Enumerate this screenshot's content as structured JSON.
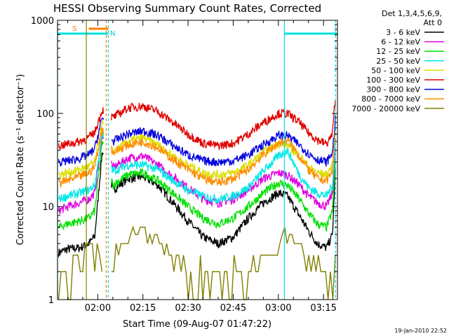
{
  "chart_data": {
    "type": "line",
    "title": "HESSI Observing Summary Count Rates, Corrected",
    "xlabel": "Start Time (09-Aug-07 01:47:22)",
    "ylabel": "Corrected Count Rate (s⁻¹ detector⁻¹)",
    "yscale": "log",
    "ylim": [
      1,
      1000
    ],
    "xlim_minutes": [
      -13.37,
      79.63
    ],
    "ytick_labels": [
      "1",
      "10",
      "100",
      "1000"
    ],
    "xticks": [
      {
        "label": "02:00",
        "minutes": 0
      },
      {
        "label": "02:15",
        "minutes": 15
      },
      {
        "label": "02:30",
        "minutes": 30
      },
      {
        "label": "02:45",
        "minutes": 45
      },
      {
        "label": "03:00",
        "minutes": 60
      },
      {
        "label": "03:15",
        "minutes": 75
      }
    ],
    "legend": {
      "header": [
        "Det 1,3,4,5,6,9,",
        "Att 0"
      ],
      "placement": "right"
    },
    "footer_date": "19-Jan-2010 22:52",
    "annotations": {
      "saa_label": "S",
      "night_label": "N",
      "night_bars_minutes": [
        [
          -13.37,
          3.5
        ],
        [
          62.0,
          79.63
        ]
      ],
      "saa_bar_minutes": [
        -3.0,
        3.5
      ],
      "night_boundaries_minutes": [
        -13.37,
        3.5,
        62.0,
        79.0
      ],
      "saa_boundary_minutes": 2.8,
      "data_gap_minutes": [
        2.0,
        4.5
      ]
    },
    "series": [
      {
        "name": "3 - 6 keV",
        "color": "#000000",
        "x": [
          -13,
          -10,
          -6,
          -3,
          -1,
          1.5,
          5,
          10,
          15,
          20,
          25,
          30,
          35,
          40,
          45,
          50,
          55,
          60,
          63,
          67,
          70,
          73,
          76,
          78,
          79
        ],
        "y": [
          3.2,
          3.5,
          3.6,
          4.0,
          4.8,
          40,
          15,
          20,
          21,
          17,
          11,
          7,
          4.7,
          4.0,
          4.7,
          7.5,
          11,
          14,
          13,
          8,
          5.5,
          4.0,
          3.6,
          5,
          28
        ]
      },
      {
        "name": "6 - 12 keV",
        "color": "#e000e0",
        "x": [
          -13,
          -10,
          -6,
          -3,
          -1,
          1.5,
          5,
          10,
          15,
          20,
          25,
          30,
          35,
          40,
          45,
          50,
          55,
          60,
          63,
          67,
          70,
          73,
          76,
          78,
          79
        ],
        "y": [
          9,
          10,
          11,
          12,
          14,
          60,
          26,
          33,
          35,
          28,
          21,
          16,
          12,
          11,
          12,
          15,
          20,
          23,
          22,
          17,
          13,
          11,
          10,
          14,
          45
        ]
      },
      {
        "name": "12 - 25 keV",
        "color": "#00e000",
        "x": [
          -13,
          -10,
          -6,
          -3,
          -1,
          1.5,
          5,
          10,
          15,
          20,
          25,
          30,
          35,
          40,
          45,
          50,
          55,
          60,
          63,
          67,
          70,
          73,
          76,
          78,
          79
        ],
        "y": [
          6,
          6.5,
          7,
          7.5,
          9,
          50,
          17,
          22,
          23,
          19,
          14,
          10,
          7.5,
          6.5,
          7.5,
          10,
          14,
          18,
          17,
          12,
          8.5,
          6.5,
          6,
          9,
          35
        ]
      },
      {
        "name": "25 - 50 keV",
        "color": "#00e8e8",
        "x": [
          -13,
          -10,
          -6,
          -3,
          -1,
          1.5,
          5,
          10,
          15,
          20,
          25,
          30,
          35,
          40,
          45,
          50,
          55,
          60,
          63,
          67,
          70,
          73,
          76,
          78,
          79
        ],
        "y": [
          12,
          13,
          14,
          15,
          17,
          60,
          24,
          28,
          28,
          25,
          19,
          15,
          13,
          12,
          13,
          16,
          24,
          35,
          40,
          22,
          16,
          14,
          13,
          17,
          60
        ]
      },
      {
        "name": "50 - 100 keV",
        "color": "#dddd00",
        "x": [
          -13,
          -10,
          -6,
          -3,
          -1,
          1.5,
          5,
          10,
          15,
          20,
          25,
          30,
          35,
          40,
          45,
          50,
          55,
          60,
          63,
          67,
          70,
          73,
          76,
          78,
          79
        ],
        "y": [
          22,
          23,
          25,
          27,
          30,
          80,
          38,
          50,
          55,
          46,
          35,
          28,
          23,
          22,
          23,
          28,
          38,
          48,
          46,
          35,
          27,
          23,
          22,
          28,
          85
        ]
      },
      {
        "name": "100 - 300 keV",
        "color": "#e00000",
        "x": [
          -13,
          -10,
          -6,
          -3,
          -1,
          1.5,
          5,
          10,
          15,
          20,
          25,
          30,
          35,
          40,
          45,
          50,
          55,
          60,
          63,
          67,
          70,
          73,
          76,
          78,
          79
        ],
        "y": [
          45,
          47,
          50,
          55,
          63,
          110,
          90,
          115,
          120,
          105,
          80,
          60,
          48,
          45,
          48,
          60,
          80,
          100,
          100,
          80,
          62,
          52,
          47,
          60,
          170
        ]
      },
      {
        "name": "300 - 800 keV",
        "color": "#0000e0",
        "x": [
          -13,
          -10,
          -6,
          -3,
          -1,
          1.5,
          5,
          10,
          15,
          20,
          25,
          30,
          35,
          40,
          45,
          50,
          55,
          60,
          63,
          67,
          70,
          73,
          76,
          78,
          79
        ],
        "y": [
          30,
          31,
          33,
          36,
          42,
          90,
          50,
          60,
          65,
          58,
          45,
          36,
          31,
          30,
          31,
          36,
          46,
          58,
          58,
          46,
          37,
          32,
          30,
          38,
          95
        ]
      },
      {
        "name": "800 - 7000 keV",
        "color": "#ff8c00",
        "x": [
          -13,
          -10,
          -6,
          -3,
          -1,
          1.5,
          5,
          10,
          15,
          20,
          25,
          30,
          35,
          40,
          45,
          50,
          55,
          60,
          63,
          67,
          70,
          73,
          76,
          78,
          79
        ],
        "y": [
          18,
          19,
          21,
          23,
          27,
          70,
          38,
          46,
          50,
          43,
          32,
          25,
          20,
          18,
          20,
          25,
          36,
          48,
          52,
          35,
          25,
          20,
          19,
          24,
          75
        ]
      },
      {
        "name": "7000 - 20000 keV",
        "color": "#808000",
        "x": [
          -13,
          -10,
          -6,
          -3,
          -1,
          1.5,
          5,
          10,
          15,
          20,
          25,
          30,
          35,
          40,
          45,
          50,
          55,
          60,
          63,
          67,
          70,
          73,
          76,
          78,
          79
        ],
        "y": [
          1.5,
          2,
          2.5,
          3,
          3,
          3,
          3,
          5,
          6,
          4,
          3,
          2,
          1.5,
          1.2,
          1.5,
          2,
          3,
          4,
          5,
          4,
          3,
          2,
          1.5,
          2,
          3
        ]
      }
    ]
  }
}
